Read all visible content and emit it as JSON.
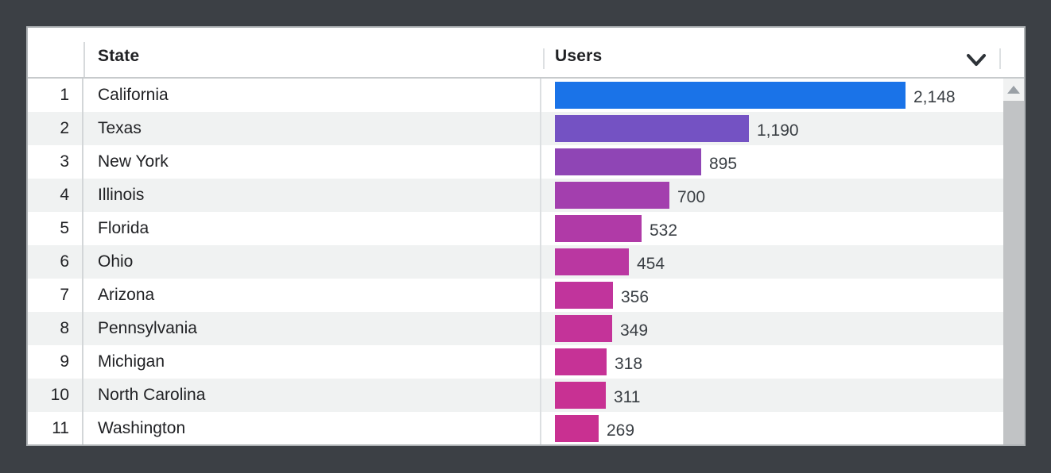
{
  "header": {
    "state_label": "State",
    "users_label": "Users",
    "sort_icon": "chevron-down-icon"
  },
  "table": {
    "max_users": 2148,
    "rows": [
      {
        "rank": "1",
        "state": "California",
        "users": 2148,
        "users_label": "2,148",
        "bar_color": "#1a73e8"
      },
      {
        "rank": "2",
        "state": "Texas",
        "users": 1190,
        "users_label": "1,190",
        "bar_color": "#7452c3"
      },
      {
        "rank": "3",
        "state": "New York",
        "users": 895,
        "users_label": "895",
        "bar_color": "#8f45b5"
      },
      {
        "rank": "4",
        "state": "Illinois",
        "users": 700,
        "users_label": "700",
        "bar_color": "#a33fae"
      },
      {
        "rank": "5",
        "state": "Florida",
        "users": 532,
        "users_label": "532",
        "bar_color": "#b03aa7"
      },
      {
        "rank": "6",
        "state": "Ohio",
        "users": 454,
        "users_label": "454",
        "bar_color": "#ba37a1"
      },
      {
        "rank": "7",
        "state": "Arizona",
        "users": 356,
        "users_label": "356",
        "bar_color": "#c1349c"
      },
      {
        "rank": "8",
        "state": "Pennsylvania",
        "users": 349,
        "users_label": "349",
        "bar_color": "#c43399"
      },
      {
        "rank": "9",
        "state": "Michigan",
        "users": 318,
        "users_label": "318",
        "bar_color": "#c63296"
      },
      {
        "rank": "10",
        "state": "North Carolina",
        "users": 311,
        "users_label": "311",
        "bar_color": "#c83193"
      },
      {
        "rank": "11",
        "state": "Washington",
        "users": 269,
        "users_label": "269",
        "bar_color": "#c93091"
      }
    ]
  },
  "scrollbar": {
    "up_icon": "triangle-up-icon"
  },
  "colors": {
    "page_background": "#3c4045",
    "card_background": "#ffffff",
    "alt_row_background": "#f0f2f2",
    "header_text": "#202124",
    "body_text": "#202124",
    "value_text": "#3a3f44",
    "top_bar_blue": "#1a73e8",
    "bottom_bar_magenta": "#c93091",
    "scrollbar_thumb": "#c1c3c5",
    "scrollbar_track": "#f1f2f2"
  },
  "chart_data": {
    "type": "bar",
    "orientation": "horizontal",
    "title": "",
    "xlabel": "Users",
    "ylabel": "State",
    "xlim": [
      0,
      2148
    ],
    "grid": false,
    "legend": false,
    "categories": [
      "California",
      "Texas",
      "New York",
      "Illinois",
      "Florida",
      "Ohio",
      "Arizona",
      "Pennsylvania",
      "Michigan",
      "North Carolina",
      "Washington"
    ],
    "values": [
      2148,
      1190,
      895,
      700,
      532,
      454,
      356,
      349,
      318,
      311,
      269
    ],
    "value_labels": [
      "2,148",
      "1,190",
      "895",
      "700",
      "532",
      "454",
      "356",
      "349",
      "318",
      "311",
      "269"
    ],
    "bar_colors": [
      "#1a73e8",
      "#7452c3",
      "#8f45b5",
      "#a33fae",
      "#b03aa7",
      "#ba37a1",
      "#c1349c",
      "#c43399",
      "#c63296",
      "#c83193",
      "#c93091"
    ]
  }
}
